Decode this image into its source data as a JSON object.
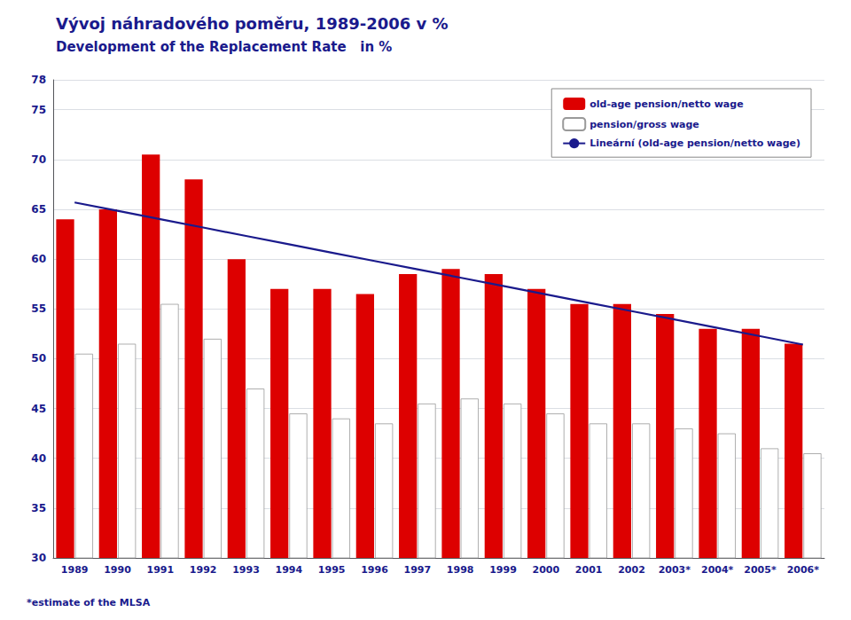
{
  "chart_data": {
    "type": "bar",
    "title": "Vývoj náhradového poměru, 1989-2006 v %",
    "subtitle": "Development of the Replacement Rate   in %",
    "categories": [
      "1989",
      "1990",
      "1991",
      "1992",
      "1993",
      "1994",
      "1995",
      "1996",
      "1997",
      "1998",
      "1999",
      "2000",
      "2001",
      "2002",
      "2003*",
      "2004*",
      "2005*",
      "2006*"
    ],
    "series": [
      {
        "name": "old-age pension/netto wage",
        "color": "#dd0000",
        "values": [
          64.0,
          65.0,
          70.5,
          68.0,
          60.0,
          57.0,
          57.0,
          56.5,
          58.5,
          59.0,
          58.5,
          57.0,
          55.5,
          55.5,
          54.5,
          53.0,
          53.0,
          51.5
        ]
      },
      {
        "name": "pension/gross wage",
        "color": "#ffffff",
        "values": [
          50.5,
          51.5,
          55.5,
          52.0,
          47.0,
          44.5,
          44.0,
          43.5,
          45.5,
          46.0,
          45.5,
          44.5,
          43.5,
          43.5,
          43.0,
          42.5,
          41.0,
          40.5
        ]
      },
      {
        "name": "Lineární (old-age pension/netto wage)",
        "type": "line",
        "color": "#1a1a8c",
        "values": [
          65.69,
          64.85,
          64.01,
          63.17,
          62.33,
          61.49,
          60.65,
          59.81,
          58.98,
          58.14,
          57.3,
          56.46,
          55.62,
          54.78,
          53.94,
          53.1,
          52.26,
          51.42
        ]
      }
    ],
    "ylim": [
      30,
      78
    ],
    "yticks": [
      30,
      35,
      40,
      45,
      50,
      55,
      60,
      65,
      70,
      75
    ],
    "grid": true,
    "legend": "upper right",
    "annotations": [
      "*estimate of the MLSA"
    ]
  }
}
